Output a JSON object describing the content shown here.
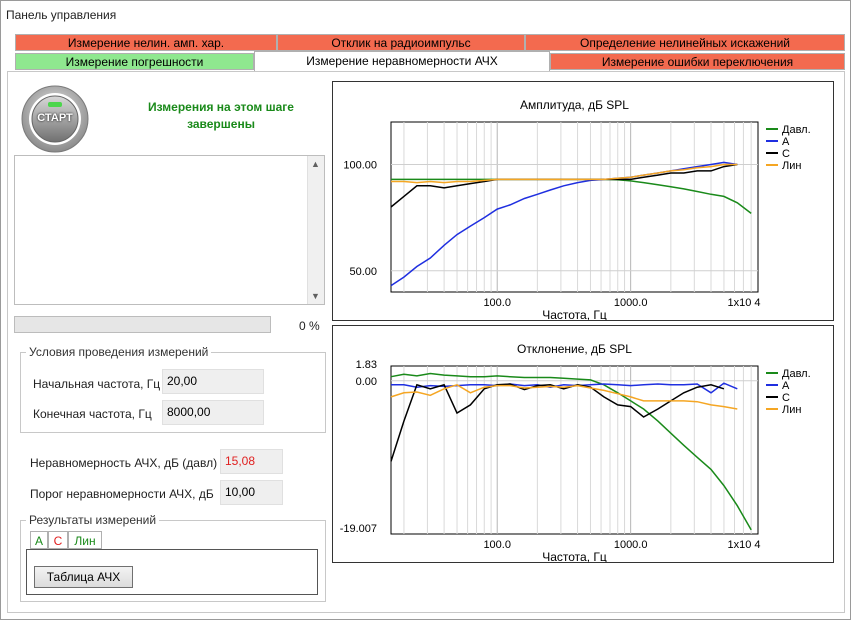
{
  "window": {
    "title": "Панель управления"
  },
  "tabs_row1": [
    {
      "label": "Измерение нелин. амп. хар."
    },
    {
      "label": "Отклик на радиоимпульс"
    },
    {
      "label": "Определение нелинейных искажений"
    }
  ],
  "tabs_row2": [
    {
      "label": "Измерение погрешности"
    },
    {
      "label": "Измерение неравномерности АЧХ"
    },
    {
      "label": "Измерение ошибки переключения"
    }
  ],
  "start": {
    "label": "СТАРТ"
  },
  "status_message": "Измерения на этом шаге завершены",
  "progress": {
    "value": 0,
    "label": "0 %"
  },
  "conditions": {
    "title": "Условия проведения измерений",
    "start_freq_label": "Начальная частота, Гц",
    "start_freq_value": "20,00",
    "end_freq_label": "Конечная частота, Гц",
    "end_freq_value": "8000,00"
  },
  "unevenness": {
    "label": "Неравномерность АЧХ, дБ (давл)",
    "value": "15,08",
    "threshold_label": "Порог неравномерности АЧХ, дБ",
    "threshold_value": "10,00"
  },
  "results": {
    "title": "Результаты измерений",
    "tabs": [
      "A",
      "C",
      "Лин"
    ],
    "table_button": "Таблица АЧХ"
  },
  "colors": {
    "red": "#f36a4f",
    "green": "#8fe88f",
    "series_davl": "#1a8a1a",
    "series_a": "#1f2fe0",
    "series_c": "#000000",
    "series_lin": "#f5a623"
  },
  "chart_data": [
    {
      "type": "line",
      "title": "Амплитуда, дБ SPL",
      "xlabel": "Частота, Гц",
      "ylabel": "",
      "x_scale": "log",
      "xlim": [
        16,
        9000
      ],
      "ylim": [
        40,
        120
      ],
      "xticks": [
        "100.0",
        "1000.0",
        "1x10 4"
      ],
      "yticks": [
        "100.00",
        "50.00"
      ],
      "legend_position": "right",
      "x": [
        16,
        20,
        25,
        31.5,
        40,
        50,
        63,
        80,
        100,
        125,
        160,
        200,
        250,
        315,
        400,
        500,
        630,
        800,
        1000,
        1250,
        1600,
        2000,
        2500,
        3150,
        4000,
        5000,
        6300,
        8000
      ],
      "series": [
        {
          "name": "Давл.",
          "values": [
            93,
            93,
            93,
            93,
            93,
            93,
            93,
            93,
            93,
            93,
            93,
            93,
            93,
            93,
            93,
            93,
            93,
            92.8,
            92.3,
            91.5,
            90.5,
            89.5,
            88.5,
            87.3,
            86,
            85,
            82,
            77
          ]
        },
        {
          "name": "A",
          "values": [
            43,
            47,
            52,
            56,
            62,
            67,
            71,
            75,
            79,
            81,
            84,
            86,
            88,
            90,
            91.5,
            92.5,
            93,
            93.5,
            94,
            95,
            96,
            97,
            98,
            99,
            100,
            101,
            100,
            null
          ]
        },
        {
          "name": "C",
          "values": [
            80,
            85,
            90,
            90,
            89,
            90,
            91,
            92,
            93,
            93,
            93,
            93,
            93,
            93,
            93,
            93,
            93,
            93,
            93,
            94,
            95,
            96,
            96,
            97,
            97,
            99,
            100,
            null
          ]
        },
        {
          "name": "Лин",
          "values": [
            92,
            92,
            91.5,
            92,
            91.5,
            92,
            92,
            92.5,
            93,
            93,
            93,
            93,
            93,
            93,
            93,
            93,
            93,
            93.5,
            94,
            95,
            96,
            97,
            97.5,
            98.5,
            99,
            100,
            100,
            null
          ]
        }
      ]
    },
    {
      "type": "line",
      "title": "Отклонение, дБ SPL",
      "xlabel": "Частота, Гц",
      "ylabel": "",
      "x_scale": "log",
      "xlim": [
        16,
        9000
      ],
      "ylim": [
        -19.007,
        1.83
      ],
      "xticks": [
        "100.0",
        "1000.0",
        "1x10 4"
      ],
      "yticks": [
        "1.83",
        "0.00",
        "-19.007"
      ],
      "legend_position": "right",
      "x": [
        16,
        20,
        25,
        31.5,
        40,
        50,
        63,
        80,
        100,
        125,
        160,
        200,
        250,
        315,
        400,
        500,
        630,
        800,
        1000,
        1250,
        1600,
        2000,
        2500,
        3150,
        4000,
        5000,
        6300,
        8000
      ],
      "series": [
        {
          "name": "Давл.",
          "values": [
            0.5,
            0.8,
            0.6,
            0.9,
            0.7,
            0.6,
            0.5,
            0.5,
            0.6,
            0.5,
            0.4,
            0.4,
            0.4,
            0.3,
            0.2,
            0.1,
            -0.5,
            -1.5,
            -2.5,
            -3.5,
            -5,
            -6.5,
            -8,
            -9.5,
            -11,
            -13,
            -15.5,
            -18.5
          ]
        },
        {
          "name": "A",
          "values": [
            -0.5,
            -0.5,
            -0.8,
            -0.6,
            -0.7,
            -0.6,
            -0.5,
            -0.5,
            -0.6,
            -0.4,
            -0.6,
            -0.5,
            -0.8,
            -0.5,
            -0.6,
            -0.5,
            -0.4,
            -0.5,
            -0.6,
            -0.5,
            -0.4,
            -0.5,
            -0.5,
            -0.4,
            -1.5,
            -0.3,
            -1.0,
            null
          ]
        },
        {
          "name": "C",
          "values": [
            -10,
            -5,
            -0.5,
            -1,
            -0.5,
            -4,
            -3,
            -1,
            -0.5,
            -0.4,
            -1.1,
            -0.6,
            -0.5,
            -1,
            -0.5,
            -0.8,
            -2,
            -3,
            -3.2,
            -4.5,
            -3.5,
            -2.5,
            -1.5,
            -0.8,
            -0.5,
            -1,
            null,
            null
          ]
        },
        {
          "name": "Лин",
          "values": [
            -2,
            -1.5,
            -1.4,
            -1.8,
            -1,
            -0.5,
            -1.5,
            -0.8,
            -0.6,
            -0.6,
            -0.9,
            -0.8,
            -0.7,
            -0.8,
            -0.6,
            -0.9,
            -1.2,
            -1.6,
            -2,
            -2.5,
            -2.5,
            -2.5,
            -2.5,
            -2.6,
            -3,
            -3.2,
            -3.5,
            null
          ]
        }
      ]
    }
  ]
}
